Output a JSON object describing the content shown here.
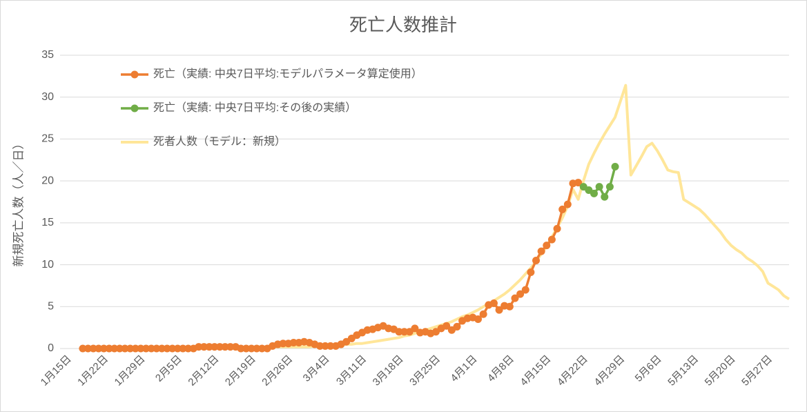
{
  "chart_data": {
    "type": "line",
    "title": "死亡人数推計",
    "y_label": "新規死亡人数（人／日）",
    "categories": [
      "1月15日",
      null,
      null,
      null,
      null,
      null,
      null,
      "1月22日",
      null,
      null,
      null,
      null,
      null,
      null,
      "1月29日",
      null,
      null,
      null,
      null,
      null,
      null,
      "2月5日",
      null,
      null,
      null,
      null,
      null,
      null,
      "2月12日",
      null,
      null,
      null,
      null,
      null,
      null,
      "2月19日",
      null,
      null,
      null,
      null,
      null,
      null,
      "2月26日",
      null,
      null,
      null,
      null,
      null,
      null,
      "3月4日",
      null,
      null,
      null,
      null,
      null,
      null,
      "3月11日",
      null,
      null,
      null,
      null,
      null,
      null,
      "3月18日",
      null,
      null,
      null,
      null,
      null,
      null,
      "3月25日",
      null,
      null,
      null,
      null,
      null,
      null,
      "4月1日",
      null,
      null,
      null,
      null,
      null,
      null,
      "4月8日",
      null,
      null,
      null,
      null,
      null,
      null,
      "4月15日",
      null,
      null,
      null,
      null,
      null,
      null,
      "4月22日",
      null,
      null,
      null,
      null,
      null,
      null,
      "4月29日",
      null,
      null,
      null,
      null,
      null,
      null,
      "5月6日",
      null,
      null,
      null,
      null,
      null,
      null,
      "5月13日",
      null,
      null,
      null,
      null,
      null,
      null,
      "5月20日",
      null,
      null,
      null,
      null,
      null,
      null,
      "5月27日",
      null,
      null,
      null,
      null
    ],
    "series": [
      {
        "name": "死亡（実績: 中央7日平均:モデルパラメータ算定使用）",
        "color": "#ED7D31",
        "marker": true,
        "values": [
          null,
          null,
          null,
          0,
          0,
          0,
          0,
          0,
          0,
          0,
          0,
          0,
          0,
          0,
          0,
          0,
          0,
          0,
          0,
          0,
          0,
          0,
          0,
          0,
          0,
          0.2,
          0.2,
          0.2,
          0.2,
          0.2,
          0.2,
          0.2,
          0.2,
          0,
          0,
          0,
          0,
          0,
          0,
          0.3,
          0.5,
          0.6,
          0.6,
          0.7,
          0.7,
          0.8,
          0.7,
          0.5,
          0.3,
          0.3,
          0.3,
          0.3,
          0.5,
          0.8,
          1.2,
          1.6,
          1.9,
          2.2,
          2.3,
          2.5,
          2.7,
          2.4,
          2.3,
          2.0,
          2.0,
          2.0,
          2.4,
          1.9,
          2.0,
          1.8,
          2.0,
          2.4,
          2.7,
          2.2,
          2.6,
          3.3,
          3.6,
          3.7,
          3.5,
          4.1,
          5.2,
          5.4,
          4.6,
          5.1,
          5.0,
          6.0,
          6.5,
          7.0,
          9.1,
          10.5,
          11.6,
          12.3,
          13.0,
          14.3,
          16.6,
          17.2,
          19.7,
          19.8,
          null,
          null,
          null,
          null,
          null,
          null,
          null,
          null,
          null,
          null,
          null,
          null,
          null,
          null,
          null,
          null,
          null,
          null,
          null,
          null,
          null,
          null,
          null,
          null,
          null,
          null,
          null,
          null,
          null,
          null,
          null,
          null,
          null,
          null,
          null,
          null,
          null,
          null,
          null,
          null
        ]
      },
      {
        "name": "死亡（実績: 中央7日平均:その後の実績）",
        "color": "#70AD47",
        "marker": true,
        "values": [
          null,
          null,
          null,
          null,
          null,
          null,
          null,
          null,
          null,
          null,
          null,
          null,
          null,
          null,
          null,
          null,
          null,
          null,
          null,
          null,
          null,
          null,
          null,
          null,
          null,
          null,
          null,
          null,
          null,
          null,
          null,
          null,
          null,
          null,
          null,
          null,
          null,
          null,
          null,
          null,
          null,
          null,
          null,
          null,
          null,
          null,
          null,
          null,
          null,
          null,
          null,
          null,
          null,
          null,
          null,
          null,
          null,
          null,
          null,
          null,
          null,
          null,
          null,
          null,
          null,
          null,
          null,
          null,
          null,
          null,
          null,
          null,
          null,
          null,
          null,
          null,
          null,
          null,
          null,
          null,
          null,
          null,
          null,
          null,
          null,
          null,
          null,
          null,
          null,
          null,
          null,
          null,
          null,
          null,
          null,
          null,
          null,
          null,
          19.3,
          18.9,
          18.5,
          19.3,
          18.1,
          19.3,
          21.7,
          null,
          null,
          null,
          null,
          null,
          null,
          null,
          null,
          null,
          null,
          null,
          null,
          null,
          null,
          null,
          null,
          null,
          null,
          null,
          null,
          null,
          null,
          null,
          null,
          null,
          null,
          null,
          null,
          null,
          null,
          null,
          null,
          null
        ]
      },
      {
        "name": "死者人数（モデル：新規）",
        "color": "#FFE699",
        "marker": false,
        "values": [
          null,
          null,
          null,
          null,
          null,
          null,
          null,
          null,
          null,
          null,
          null,
          null,
          null,
          null,
          null,
          null,
          0.1,
          0.1,
          0.1,
          0.1,
          0.1,
          0.1,
          0.1,
          0.1,
          0.1,
          0.1,
          0.1,
          0.1,
          0.1,
          0.1,
          0.1,
          0.1,
          0.1,
          0.1,
          0.1,
          0.1,
          0.2,
          0.2,
          0.2,
          0.2,
          0.2,
          0.2,
          0.2,
          0.2,
          0.2,
          0.2,
          0.2,
          0.3,
          0.3,
          0.3,
          0.4,
          0.4,
          0.4,
          0.5,
          0.5,
          0.6,
          0.6,
          0.7,
          0.8,
          0.9,
          1.0,
          1.1,
          1.2,
          1.3,
          1.5,
          1.6,
          1.8,
          2.0,
          2.2,
          2.4,
          2.6,
          2.8,
          3.0,
          3.2,
          3.5,
          3.8,
          4.0,
          4.3,
          4.6,
          5.0,
          5.3,
          5.7,
          6.1,
          6.5,
          7.0,
          7.6,
          8.2,
          8.9,
          9.6,
          10.4,
          11.3,
          12.2,
          13.3,
          14.4,
          15.6,
          17.0,
          19.0,
          17.8,
          20.0,
          22.0,
          23.3,
          24.5,
          25.6,
          26.6,
          27.6,
          29.5,
          31.4,
          20.7,
          21.8,
          22.9,
          24.1,
          24.5,
          23.6,
          22.5,
          21.3,
          21.1,
          21.0,
          17.8,
          17.4,
          17.0,
          16.6,
          16.0,
          15.3,
          14.6,
          13.9,
          13.0,
          12.3,
          11.8,
          11.4,
          10.8,
          10.4,
          9.9,
          9.2,
          7.8,
          7.4,
          7.0,
          6.3,
          5.9
        ]
      }
    ],
    "ylim": [
      0,
      35
    ],
    "yticks": [
      0,
      5,
      10,
      15,
      20,
      25,
      30,
      35
    ],
    "grid": true,
    "legend": "upper left"
  }
}
